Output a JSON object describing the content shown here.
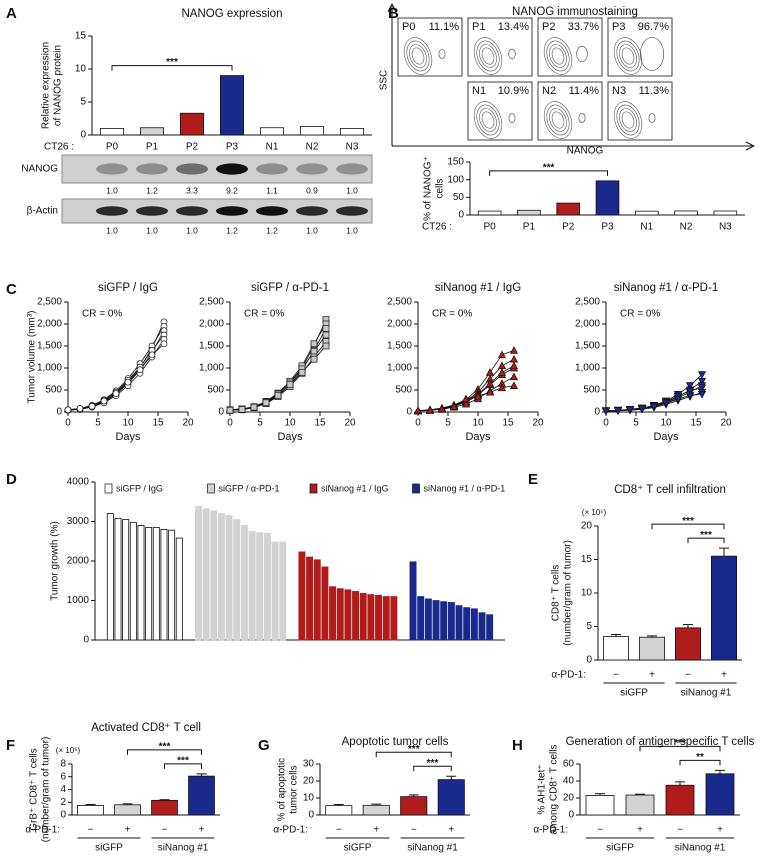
{
  "chart_data": [
    {
      "panel": "A",
      "type": "bar",
      "title": "NANOG expression",
      "ylabel": [
        "Relative expression",
        "of NANOG protein"
      ],
      "x_prefix": "CT26 :",
      "categories": [
        "P0",
        "P1",
        "P2",
        "P3",
        "N1",
        "N2",
        "N3"
      ],
      "values": [
        1,
        1.1,
        3.3,
        9,
        1.1,
        1.3,
        1
      ],
      "colors": [
        "#ffffff",
        "#d3d3d3",
        "#b01c1c",
        "#1a2a8c",
        "#ffffff",
        "#ffffff",
        "#ffffff"
      ],
      "ylim": [
        0,
        15
      ],
      "yticks": [
        0,
        5,
        10,
        15
      ],
      "significance": [
        {
          "between": [
            0,
            3
          ],
          "label": "***"
        }
      ],
      "blot": [
        {
          "label": "NANOG",
          "values": [
            1.0,
            1.2,
            3.3,
            9.2,
            1.1,
            0.9,
            1.0
          ],
          "value_labels": [
            "1.0",
            "1.2",
            "3.3",
            "9.2",
            "1.1",
            "0.9",
            "1.0"
          ]
        },
        {
          "label": "β-Actin",
          "values": [
            1.0,
            1.0,
            1.0,
            1.2,
            1.2,
            1.0,
            1.0
          ],
          "value_labels": [
            "1.0",
            "1.0",
            "1.0",
            "1.2",
            "1.2",
            "1.0",
            "1.0"
          ]
        }
      ]
    },
    {
      "panel": "B",
      "type": "flow",
      "title": "NANOG immunostaining",
      "xlabel": "NANOG",
      "ylabel": "SSC",
      "labels": [
        "P0",
        "P1",
        "P2",
        "P3",
        "N1",
        "N2",
        "N3"
      ],
      "values": [
        11.1,
        13.4,
        33.7,
        96.7,
        10.9,
        11.4,
        11.3
      ],
      "value_labels": [
        "11.1%",
        "13.4%",
        "33.7%",
        "96.7%",
        "10.9%",
        "11.4%",
        "11.3%"
      ]
    },
    {
      "type": "bar",
      "ylabel": [
        "% of NANOG⁺",
        "cells"
      ],
      "x_prefix": "CT26 :",
      "categories": [
        "P0",
        "P1",
        "P2",
        "P3",
        "N1",
        "N2",
        "N3"
      ],
      "values": [
        11.1,
        13.4,
        33.7,
        96.7,
        10.9,
        11.4,
        11.3
      ],
      "colors": [
        "#ffffff",
        "#d3d3d3",
        "#b01c1c",
        "#1a2a8c",
        "#ffffff",
        "#ffffff",
        "#ffffff"
      ],
      "ylim": [
        0,
        150
      ],
      "yticks": [
        0,
        50,
        100,
        150
      ],
      "significance": [
        {
          "between": [
            0,
            3
          ],
          "label": "***"
        }
      ]
    },
    {
      "panel": "C",
      "type": "line",
      "title": "siGFP / IgG",
      "ylabel": [
        "Tumor volume (mm³)"
      ],
      "xlabel": "Days",
      "annotation": "CR = 0%",
      "marker": "circle",
      "color": "#ffffff",
      "x": [
        0,
        2,
        4,
        6,
        8,
        10,
        12,
        14,
        16
      ],
      "xlim": [
        0,
        20
      ],
      "xticks": [
        0,
        5,
        10,
        15,
        20
      ],
      "ylim": [
        0,
        2500
      ],
      "yticks": [
        0,
        500,
        {
          "value": 1000,
          "label": "1,000"
        },
        {
          "value": 1500,
          "label": "1,500"
        },
        {
          "value": 2000,
          "label": "2,000"
        },
        {
          "value": 2500,
          "label": "2,500"
        }
      ],
      "series": [
        {
          "values": [
            40,
            70,
            130,
            250,
            430,
            700,
            1000,
            1450,
            2050
          ]
        },
        {
          "values": [
            50,
            80,
            150,
            280,
            480,
            760,
            1100,
            1500,
            1950
          ]
        },
        {
          "values": [
            40,
            60,
            120,
            230,
            400,
            650,
            950,
            1350,
            1850
          ]
        },
        {
          "values": [
            50,
            70,
            140,
            260,
            450,
            720,
            1020,
            1400,
            1750
          ]
        },
        {
          "values": [
            40,
            60,
            110,
            210,
            370,
            600,
            880,
            1250,
            1650
          ]
        },
        {
          "values": [
            50,
            80,
            130,
            250,
            420,
            680,
            960,
            1300,
            1550
          ]
        }
      ]
    },
    {
      "type": "line",
      "title": "siGFP / α-PD-1",
      "xlabel": "Days",
      "annotation": "CR = 0%",
      "marker": "square",
      "color": "#c8c8c8",
      "x": [
        0,
        2,
        4,
        6,
        8,
        10,
        12,
        14,
        16
      ],
      "xlim": [
        0,
        20
      ],
      "xticks": [
        0,
        5,
        10,
        15,
        20
      ],
      "ylim": [
        0,
        2500
      ],
      "yticks": [
        0,
        500,
        {
          "value": 1000,
          "label": "1,000"
        },
        {
          "value": 1500,
          "label": "1,500"
        },
        {
          "value": 2000,
          "label": "2,000"
        },
        {
          "value": 2500,
          "label": "2,500"
        }
      ],
      "series": [
        {
          "values": [
            40,
            60,
            110,
            220,
            400,
            680,
            1000,
            1500,
            2100
          ]
        },
        {
          "values": [
            50,
            70,
            120,
            240,
            430,
            700,
            1050,
            1550,
            2000
          ]
        },
        {
          "values": [
            40,
            60,
            100,
            200,
            370,
            620,
            950,
            1400,
            1900
          ]
        },
        {
          "values": [
            50,
            70,
            110,
            230,
            410,
            660,
            980,
            1380,
            1750
          ]
        },
        {
          "values": [
            40,
            50,
            100,
            190,
            350,
            580,
            880,
            1250,
            1600
          ]
        },
        {
          "values": [
            40,
            60,
            110,
            210,
            380,
            620,
            900,
            1200,
            1500
          ]
        }
      ]
    },
    {
      "type": "line",
      "title": "siNanog #1 / IgG",
      "xlabel": "Days",
      "annotation": "CR = 0%",
      "marker": "triangle",
      "color": "#b01c1c",
      "x": [
        0,
        2,
        4,
        6,
        8,
        10,
        12,
        14,
        16
      ],
      "xlim": [
        0,
        20
      ],
      "xticks": [
        0,
        5,
        10,
        15,
        20
      ],
      "ylim": [
        0,
        2500
      ],
      "yticks": [
        0,
        500,
        {
          "value": 1000,
          "label": "1,000"
        },
        {
          "value": 1500,
          "label": "1,500"
        },
        {
          "value": 2000,
          "label": "2,000"
        },
        {
          "value": 2500,
          "label": "2,500"
        }
      ],
      "series": [
        {
          "values": [
            30,
            50,
            90,
            160,
            280,
            520,
            900,
            1300,
            1400
          ]
        },
        {
          "values": [
            30,
            40,
            80,
            150,
            250,
            450,
            750,
            1050,
            1200
          ]
        },
        {
          "values": [
            30,
            40,
            70,
            130,
            220,
            380,
            620,
            850,
            1000
          ]
        },
        {
          "values": [
            30,
            50,
            80,
            140,
            240,
            400,
            650,
            900,
            1050
          ]
        },
        {
          "values": [
            20,
            40,
            60,
            110,
            180,
            300,
            480,
            650,
            800
          ]
        },
        {
          "values": [
            30,
            40,
            70,
            120,
            300,
            360,
            450,
            550,
            600
          ]
        }
      ]
    },
    {
      "type": "line",
      "title": "siNanog #1 / α-PD-1",
      "xlabel": "Days",
      "annotation": "CR = 0%",
      "marker": "triangle-down",
      "color": "#1a2a8c",
      "x": [
        0,
        2,
        4,
        6,
        8,
        10,
        12,
        14,
        16
      ],
      "xlim": [
        0,
        20
      ],
      "xticks": [
        0,
        5,
        10,
        15,
        20
      ],
      "ylim": [
        0,
        2500
      ],
      "yticks": [
        0,
        500,
        {
          "value": 1000,
          "label": "1,000"
        },
        {
          "value": 1500,
          "label": "1,500"
        },
        {
          "value": 2000,
          "label": "2,000"
        },
        {
          "value": 2500,
          "label": "2,500"
        }
      ],
      "series": [
        {
          "values": [
            30,
            40,
            60,
            90,
            150,
            250,
            400,
            600,
            850
          ]
        },
        {
          "values": [
            30,
            40,
            50,
            80,
            130,
            220,
            350,
            500,
            700
          ]
        },
        {
          "values": [
            20,
            30,
            50,
            70,
            120,
            200,
            320,
            450,
            600
          ]
        },
        {
          "values": [
            30,
            40,
            60,
            90,
            140,
            230,
            360,
            480,
            550
          ]
        },
        {
          "values": [
            20,
            30,
            40,
            60,
            100,
            170,
            260,
            350,
            450
          ]
        },
        {
          "values": [
            20,
            30,
            50,
            80,
            120,
            200,
            290,
            380,
            400
          ]
        }
      ]
    },
    {
      "panel": "D",
      "type": "waterfall",
      "ylabel": [
        "Tumor growth (%)"
      ],
      "ylim": [
        0,
        4000
      ],
      "yticks": [
        0,
        1000,
        2000,
        3000,
        4000
      ],
      "series": [
        {
          "name": "siGFP / IgG",
          "color": "#ffffff",
          "values": [
            3200,
            3080,
            3050,
            2980,
            2900,
            2850,
            2850,
            2800,
            2780,
            2580
          ]
        },
        {
          "name": "siGFP / α-PD-1",
          "color": "#d3d3d3",
          "values": [
            3380,
            3320,
            3270,
            3200,
            3150,
            3050,
            2900,
            2750,
            2720,
            2700,
            2480,
            2480
          ]
        },
        {
          "name": "siNanog #1 / IgG",
          "color": "#b01c1c",
          "values": [
            2230,
            2100,
            2030,
            1850,
            1350,
            1300,
            1270,
            1230,
            1180,
            1150,
            1130,
            1100,
            1100
          ]
        },
        {
          "name": "siNanog #1 / α-PD-1",
          "color": "#1a2a8c",
          "values": [
            1980,
            1100,
            1040,
            1000,
            970,
            950,
            870,
            820,
            790,
            690,
            640
          ]
        }
      ]
    },
    {
      "panel": "E",
      "type": "bar",
      "title": "CD8⁺ T cell infiltration",
      "scale": "(× 10⁵)",
      "ylabel": [
        "CD8⁺ T cells",
        "(number/gram of tumor)"
      ],
      "values": [
        3.5,
        3.4,
        4.8,
        15.5
      ],
      "errors": [
        0.3,
        0.2,
        0.5,
        1.2
      ],
      "colors": [
        "#ffffff",
        "#d3d3d3",
        "#b01c1c",
        "#1a2a8c"
      ],
      "ylim": [
        0,
        20
      ],
      "yticks": [
        0,
        5,
        10,
        15,
        20
      ],
      "treatment_label": "α-PD-1:",
      "treatment_values": [
        "−",
        "+",
        "−",
        "+"
      ],
      "group_labels": [
        "siGFP",
        "siNanog #1"
      ],
      "significance": [
        {
          "between": [
            2,
            3
          ],
          "label": "***"
        },
        {
          "between": [
            1,
            3
          ],
          "label": "***"
        }
      ]
    },
    {
      "panel": "F",
      "type": "bar",
      "title": "Activated CD8⁺ T cell",
      "scale": "(× 10⁵)",
      "ylabel": [
        "GrB⁺ CD8⁺ T cells",
        "(number/gram of tumor)"
      ],
      "values": [
        1.5,
        1.6,
        2.3,
        6.1
      ],
      "errors": [
        0.15,
        0.15,
        0.1,
        0.35
      ],
      "colors": [
        "#ffffff",
        "#d3d3d3",
        "#b01c1c",
        "#1a2a8c"
      ],
      "ylim": [
        0,
        8
      ],
      "yticks": [
        0,
        2,
        4,
        6,
        8
      ],
      "treatment_label": "α-PD-1:",
      "treatment_values": [
        "−",
        "+",
        "−",
        "+"
      ],
      "group_labels": [
        "siGFP",
        "siNanog #1"
      ],
      "significance": [
        {
          "between": [
            2,
            3
          ],
          "label": "***"
        },
        {
          "between": [
            1,
            3
          ],
          "label": "***"
        }
      ]
    },
    {
      "panel": "G",
      "type": "bar",
      "title": "Apoptotic tumor cells",
      "ylabel": [
        "% of apoptotic",
        "tumor cells"
      ],
      "values": [
        5.5,
        5.7,
        10.8,
        20.8
      ],
      "errors": [
        0.7,
        0.7,
        1,
        2
      ],
      "colors": [
        "#ffffff",
        "#d3d3d3",
        "#b01c1c",
        "#1a2a8c"
      ],
      "ylim": [
        0,
        30
      ],
      "yticks": [
        0,
        10,
        20,
        30
      ],
      "treatment_label": "α-PD-1:",
      "treatment_values": [
        "−",
        "+",
        "−",
        "+"
      ],
      "group_labels": [
        "siGFP",
        "siNanog #1"
      ],
      "significance": [
        {
          "between": [
            2,
            3
          ],
          "label": "***"
        },
        {
          "between": [
            1,
            3
          ],
          "label": "***"
        }
      ]
    },
    {
      "panel": "H",
      "type": "bar",
      "title": "Generation of antigen-specific T cells",
      "ylabel": [
        "% AH1-tet⁺",
        "among CD8⁺ T cells"
      ],
      "values": [
        23,
        23.5,
        35,
        48.5
      ],
      "errors": [
        2,
        1,
        4,
        4
      ],
      "colors": [
        "#ffffff",
        "#d3d3d3",
        "#b01c1c",
        "#1a2a8c"
      ],
      "ylim": [
        0,
        60
      ],
      "yticks": [
        0,
        20,
        40,
        60
      ],
      "treatment_label": "α-PD-1:",
      "treatment_values": [
        "−",
        "+",
        "−",
        "+"
      ],
      "group_labels": [
        "siGFP",
        "siNanog #1"
      ],
      "significance": [
        {
          "between": [
            2,
            3
          ],
          "label": "**"
        },
        {
          "between": [
            1,
            3
          ],
          "label": "***"
        }
      ]
    }
  ]
}
